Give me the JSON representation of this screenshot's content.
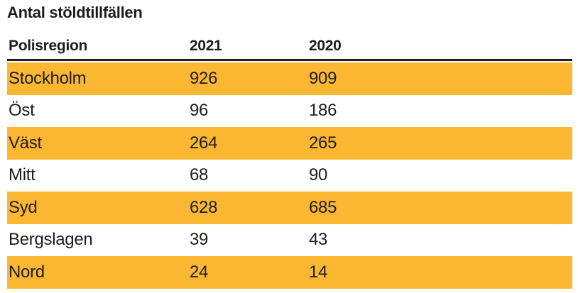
{
  "title": "Antal stöldtillfällen",
  "colors": {
    "highlight": "#FBB731",
    "ink": "#1D1D1B"
  },
  "table": {
    "columns": [
      "Polisregion",
      "2021",
      "2020"
    ],
    "rows": [
      {
        "cells": [
          "Stockholm",
          "926",
          "909"
        ],
        "highlighted": true
      },
      {
        "cells": [
          "Öst",
          "96",
          "186"
        ],
        "highlighted": false
      },
      {
        "cells": [
          "Väst",
          "264",
          "265"
        ],
        "highlighted": true
      },
      {
        "cells": [
          "Mitt",
          "68",
          "90"
        ],
        "highlighted": false
      },
      {
        "cells": [
          "Syd",
          "628",
          "685"
        ],
        "highlighted": true
      },
      {
        "cells": [
          "Bergslagen",
          "39",
          "43"
        ],
        "highlighted": false
      },
      {
        "cells": [
          "Nord",
          "24",
          "14"
        ],
        "highlighted": true
      }
    ]
  },
  "chart_data": {
    "type": "table",
    "title": "Antal stöldtillfällen",
    "columns": [
      "Polisregion",
      "2021",
      "2020"
    ],
    "rows": [
      [
        "Stockholm",
        926,
        909
      ],
      [
        "Öst",
        96,
        186
      ],
      [
        "Väst",
        264,
        265
      ],
      [
        "Mitt",
        68,
        90
      ],
      [
        "Syd",
        628,
        685
      ],
      [
        "Bergslagen",
        39,
        43
      ],
      [
        "Nord",
        24,
        14
      ]
    ]
  }
}
